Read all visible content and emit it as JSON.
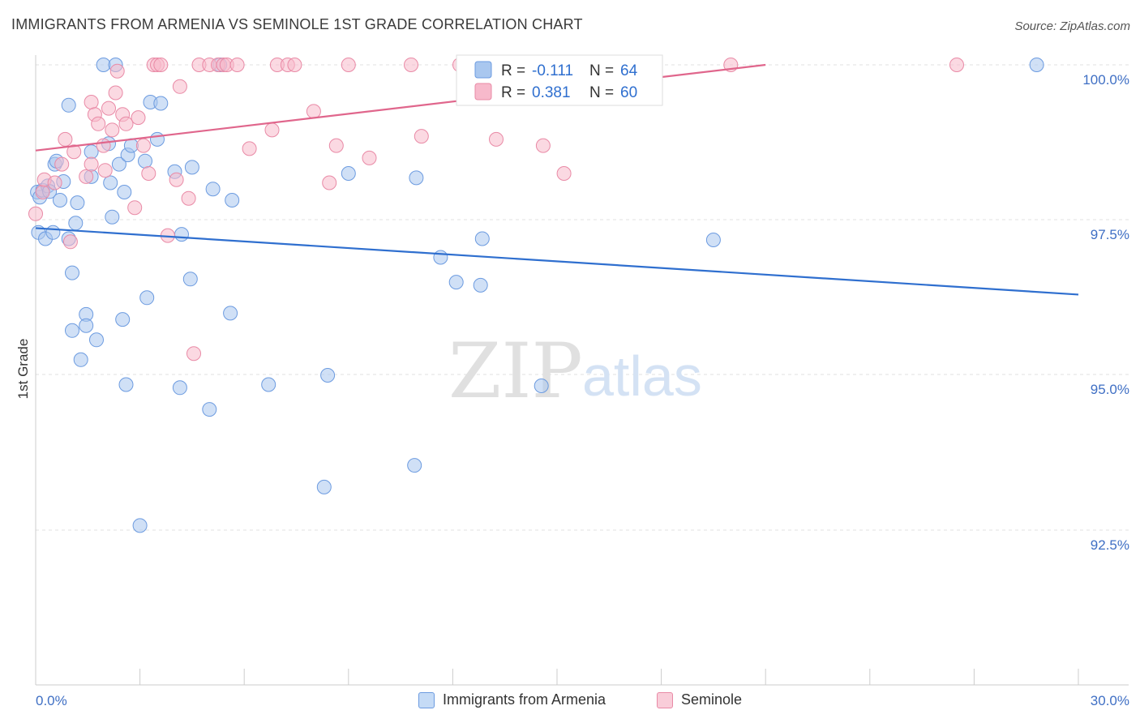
{
  "header": {
    "title": "IMMIGRANTS FROM ARMENIA VS SEMINOLE 1ST GRADE CORRELATION CHART",
    "source": "Source: ZipAtlas.com"
  },
  "watermark": {
    "zip": "ZIP",
    "atlas": "atlas"
  },
  "stats_legend": [
    {
      "r_label": "R =",
      "r_value": "-0.111",
      "n_label": "N =",
      "n_value": "64",
      "color": "#a9c7ef",
      "stroke": "#6c9be0"
    },
    {
      "r_label": "R =",
      "r_value": "0.381",
      "n_label": "N =",
      "n_value": "60",
      "color": "#f7b9cb",
      "stroke": "#e98aa6"
    }
  ],
  "bottom_legend": [
    {
      "label": "Immigrants from Armenia",
      "color": "#c5dbf6",
      "stroke": "#6c9be0"
    },
    {
      "label": "Seminole",
      "color": "#f9cdd9",
      "stroke": "#e98aa6"
    }
  ],
  "chart_data": {
    "type": "scatter",
    "title": "IMMIGRANTS FROM ARMENIA VS SEMINOLE 1ST GRADE CORRELATION CHART",
    "xlabel": "",
    "ylabel": "1st Grade",
    "xlim": [
      0,
      30
    ],
    "ylim": [
      90.0,
      100.3
    ],
    "x_tick_labels": [
      "0.0%",
      "30.0%"
    ],
    "y_ticks": [
      {
        "value": 100.0,
        "label": "100.0%"
      },
      {
        "value": 97.5,
        "label": "97.5%"
      },
      {
        "value": 95.0,
        "label": "95.0%"
      },
      {
        "value": 92.5,
        "label": "92.5%"
      }
    ],
    "grid": "horizontal dashed",
    "legend_placement": "bottom",
    "series": [
      {
        "name": "Immigrants from Armenia",
        "color": "#6c9be0",
        "fill": "#a9c7ef",
        "trend": {
          "x": [
            0,
            30
          ],
          "y": [
            97.37,
            96.3
          ],
          "color": "#2f6fcf"
        },
        "points": [
          [
            0.05,
            97.95
          ],
          [
            0.08,
            97.3
          ],
          [
            0.12,
            97.87
          ],
          [
            0.2,
            97.98
          ],
          [
            0.28,
            97.2
          ],
          [
            0.35,
            98.05
          ],
          [
            0.4,
            97.96
          ],
          [
            0.5,
            97.3
          ],
          [
            0.55,
            98.4
          ],
          [
            0.6,
            98.45
          ],
          [
            0.7,
            97.82
          ],
          [
            0.8,
            98.12
          ],
          [
            0.95,
            97.2
          ],
          [
            0.95,
            99.35
          ],
          [
            1.05,
            96.65
          ],
          [
            1.05,
            95.72
          ],
          [
            1.15,
            97.45
          ],
          [
            1.2,
            97.78
          ],
          [
            1.3,
            95.25
          ],
          [
            1.45,
            95.98
          ],
          [
            1.45,
            95.8
          ],
          [
            1.6,
            98.6
          ],
          [
            1.6,
            98.2
          ],
          [
            1.75,
            95.57
          ],
          [
            1.95,
            100.0
          ],
          [
            2.1,
            98.73
          ],
          [
            2.15,
            98.1
          ],
          [
            2.2,
            97.55
          ],
          [
            2.3,
            100.0
          ],
          [
            2.4,
            98.4
          ],
          [
            2.5,
            95.9
          ],
          [
            2.55,
            97.95
          ],
          [
            2.6,
            94.85
          ],
          [
            2.65,
            98.55
          ],
          [
            2.75,
            98.7
          ],
          [
            3.0,
            92.58
          ],
          [
            3.15,
            98.45
          ],
          [
            3.2,
            96.25
          ],
          [
            3.3,
            99.4
          ],
          [
            3.5,
            98.8
          ],
          [
            3.6,
            99.38
          ],
          [
            4.0,
            98.28
          ],
          [
            4.15,
            94.8
          ],
          [
            4.2,
            97.27
          ],
          [
            4.45,
            96.55
          ],
          [
            4.5,
            98.35
          ],
          [
            5.0,
            94.45
          ],
          [
            5.1,
            98.0
          ],
          [
            5.3,
            100.0
          ],
          [
            5.6,
            96.0
          ],
          [
            5.65,
            97.82
          ],
          [
            6.7,
            94.85
          ],
          [
            8.3,
            93.2
          ],
          [
            8.4,
            95.0
          ],
          [
            9.0,
            98.25
          ],
          [
            10.9,
            93.55
          ],
          [
            10.95,
            98.18
          ],
          [
            11.65,
            96.9
          ],
          [
            12.1,
            96.5
          ],
          [
            12.85,
            97.2
          ],
          [
            12.8,
            96.45
          ],
          [
            14.55,
            94.83
          ],
          [
            19.5,
            97.18
          ],
          [
            28.8,
            100.0
          ]
        ]
      },
      {
        "name": "Seminole",
        "color": "#e98aa6",
        "fill": "#f7b9cb",
        "trend": {
          "x": [
            0,
            21
          ],
          "y": [
            98.62,
            100.0
          ],
          "color": "#e0668c"
        },
        "points": [
          [
            0.0,
            97.6
          ],
          [
            0.2,
            97.95
          ],
          [
            0.25,
            98.15
          ],
          [
            0.55,
            98.1
          ],
          [
            0.75,
            98.4
          ],
          [
            0.85,
            98.8
          ],
          [
            1.0,
            97.15
          ],
          [
            1.1,
            98.6
          ],
          [
            1.45,
            98.2
          ],
          [
            1.6,
            98.4
          ],
          [
            1.6,
            99.4
          ],
          [
            1.7,
            99.2
          ],
          [
            1.8,
            99.05
          ],
          [
            1.95,
            98.7
          ],
          [
            2.0,
            98.3
          ],
          [
            2.1,
            99.3
          ],
          [
            2.2,
            98.95
          ],
          [
            2.3,
            99.55
          ],
          [
            2.35,
            99.9
          ],
          [
            2.5,
            99.2
          ],
          [
            2.6,
            99.05
          ],
          [
            2.85,
            97.7
          ],
          [
            2.95,
            99.15
          ],
          [
            3.1,
            98.7
          ],
          [
            3.25,
            98.25
          ],
          [
            3.4,
            100.0
          ],
          [
            3.5,
            100.0
          ],
          [
            3.6,
            100.0
          ],
          [
            3.8,
            97.25
          ],
          [
            4.05,
            98.15
          ],
          [
            4.15,
            99.65
          ],
          [
            4.4,
            97.85
          ],
          [
            4.55,
            95.35
          ],
          [
            4.7,
            100.0
          ],
          [
            5.0,
            100.0
          ],
          [
            5.25,
            100.0
          ],
          [
            5.4,
            100.0
          ],
          [
            5.5,
            100.0
          ],
          [
            5.8,
            100.0
          ],
          [
            6.15,
            98.65
          ],
          [
            6.8,
            98.95
          ],
          [
            6.95,
            100.0
          ],
          [
            7.25,
            100.0
          ],
          [
            7.45,
            100.0
          ],
          [
            8.0,
            99.25
          ],
          [
            8.45,
            98.1
          ],
          [
            8.65,
            98.7
          ],
          [
            9.0,
            100.0
          ],
          [
            9.6,
            98.5
          ],
          [
            10.8,
            100.0
          ],
          [
            11.1,
            98.85
          ],
          [
            12.2,
            100.0
          ],
          [
            13.25,
            98.8
          ],
          [
            14.6,
            98.7
          ],
          [
            15.2,
            98.25
          ],
          [
            15.8,
            100.0
          ],
          [
            16.7,
            100.0
          ],
          [
            17.75,
            100.0
          ],
          [
            20.0,
            100.0
          ],
          [
            26.5,
            100.0
          ]
        ]
      }
    ]
  }
}
